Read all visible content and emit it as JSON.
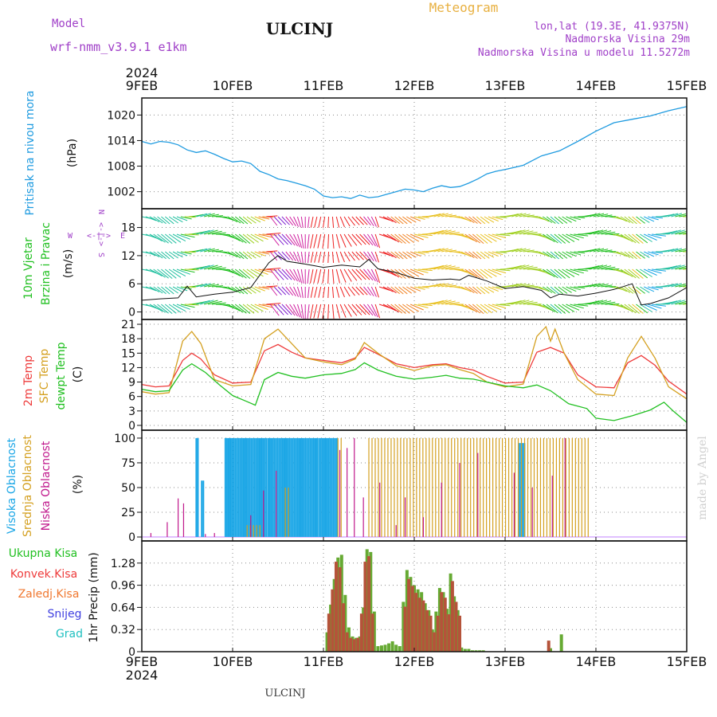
{
  "header": {
    "model_label": "Model",
    "model_name": "wrf-nmm_v3.9.1  e1km",
    "station": "ULCINJ",
    "meteogram": "Meteogram",
    "lonlat": "lon,lat (19.3E, 41.9375N)",
    "elevation": "Nadmorska Visina 29m",
    "model_elevation": "Nadmorska Visina u modelu 11.5272m",
    "footer_station": "ULCINJ",
    "credit": "made by Angel"
  },
  "colors": {
    "pressure": "#1f9be0",
    "temp2m": "#ee3b3b",
    "sfc": "#d4a020",
    "dewpt": "#22c022",
    "high_cloud": "#1aa6e6",
    "mid_cloud": "#d4a020",
    "low_cloud": "#c0188c",
    "total_precip": "#66aa33",
    "conv_precip": "#b5533a",
    "purple_text": "#a040c8",
    "orange_text": "#e8b040"
  },
  "chart_data": {
    "type": "meteogram",
    "time_axis": {
      "start": "2024-02-09",
      "end": "2024-02-15",
      "year": "2024",
      "tick_labels": [
        "9FEB",
        "10FEB",
        "11FEB",
        "12FEB",
        "13FEB",
        "14FEB",
        "15FEB"
      ]
    },
    "panels": [
      {
        "id": "pressure",
        "labels": [
          "Pritisak na nivou mora",
          "(hPa)"
        ],
        "yticks": [
          1002,
          1008,
          1014,
          1020
        ],
        "ylim": [
          998,
          1024
        ],
        "series": [
          {
            "name": "Pritisak na nivou mora",
            "x": [
              0,
              0.1,
              0.2,
              0.3,
              0.4,
              0.5,
              0.6,
              0.7,
              0.8,
              0.9,
              1.0,
              1.1,
              1.2,
              1.3,
              1.4,
              1.5,
              1.6,
              1.7,
              1.8,
              1.9,
              2.0,
              2.1,
              2.2,
              2.3,
              2.4,
              2.5,
              2.6,
              2.7,
              2.8,
              2.9,
              3.0,
              3.1,
              3.2,
              3.3,
              3.4,
              3.5,
              3.6,
              3.7,
              3.8,
              3.9,
              4.0,
              4.2,
              4.4,
              4.6,
              4.8,
              5.0,
              5.2,
              5.4,
              5.6,
              5.8,
              6.0
            ],
            "values": [
              1013.8,
              1013.2,
              1013.8,
              1013.6,
              1013.0,
              1011.8,
              1011.2,
              1011.6,
              1010.8,
              1009.8,
              1009.0,
              1009.2,
              1008.6,
              1006.8,
              1006.0,
              1005.0,
              1004.6,
              1004.0,
              1003.4,
              1002.6,
              1001.0,
              1000.6,
              1000.8,
              1000.4,
              1001.2,
              1000.6,
              1000.8,
              1001.4,
              1002.0,
              1002.6,
              1002.4,
              1002.0,
              1002.8,
              1003.4,
              1003.0,
              1003.2,
              1004.0,
              1005.0,
              1006.2,
              1006.8,
              1007.2,
              1008.2,
              1010.4,
              1011.6,
              1013.8,
              1016.2,
              1018.2,
              1019.0,
              1019.8,
              1021.0,
              1022.0
            ]
          }
        ]
      },
      {
        "id": "wind",
        "labels": [
          "10m Vjetar",
          "Brzina i Pravac",
          "(m/s)"
        ],
        "direction_legend": {
          "n": "N",
          "s": "S",
          "w": "W",
          "e": "E",
          "arrows": "<-|->"
        },
        "yticks": [
          0,
          6,
          12,
          18
        ],
        "ylim": [
          -1.6,
          22
        ],
        "series": [
          {
            "name": "Brzina",
            "x": [
              0,
              0.2,
              0.4,
              0.5,
              0.6,
              0.8,
              1.0,
              1.2,
              1.4,
              1.5,
              1.6,
              1.8,
              2.0,
              2.2,
              2.4,
              2.5,
              2.6,
              2.8,
              3.0,
              3.2,
              3.4,
              3.5,
              3.6,
              3.8,
              4.0,
              4.2,
              4.4,
              4.5,
              4.6,
              4.8,
              5.0,
              5.2,
              5.4,
              5.5,
              5.6,
              5.8,
              6.0
            ],
            "values": [
              2.5,
              2.8,
              3.0,
              5.5,
              3.2,
              3.8,
              4.2,
              5.2,
              10.5,
              12.0,
              10.8,
              10.2,
              9.5,
              10.0,
              9.6,
              11.2,
              9.2,
              8.4,
              7.2,
              6.8,
              7.0,
              6.8,
              7.8,
              6.6,
              5.0,
              5.4,
              4.6,
              3.0,
              3.8,
              3.4,
              4.0,
              4.8,
              6.0,
              1.5,
              1.8,
              3.0,
              5.2
            ]
          }
        ]
      },
      {
        "id": "temperature",
        "labels": [
          "2m Temp",
          "SFC Temp",
          "dewpt Temp",
          "(C)"
        ],
        "yticks": [
          0,
          3,
          6,
          9,
          12,
          15,
          18,
          21
        ],
        "ylim": [
          -1,
          22
        ],
        "series": [
          {
            "name": "2m Temp",
            "x": [
              0,
              0.15,
              0.3,
              0.45,
              0.55,
              0.65,
              0.8,
              1.0,
              1.2,
              1.35,
              1.5,
              1.65,
              1.8,
              2.0,
              2.2,
              2.35,
              2.45,
              2.6,
              2.8,
              3.0,
              3.2,
              3.35,
              3.5,
              3.65,
              3.8,
              4.0,
              4.2,
              4.35,
              4.5,
              4.65,
              4.8,
              5.0,
              5.2,
              5.35,
              5.5,
              5.65,
              5.8,
              6.0
            ],
            "values": [
              8.5,
              8.0,
              8.2,
              13.5,
              15.0,
              13.8,
              10.5,
              8.8,
              9.0,
              15.5,
              16.8,
              15.2,
              14.0,
              13.5,
              13.0,
              14.0,
              16.2,
              14.8,
              12.8,
              12.0,
              12.6,
              12.8,
              12.0,
              11.5,
              10.2,
              8.8,
              9.0,
              15.2,
              16.2,
              15.0,
              10.5,
              8.0,
              7.8,
              13.0,
              14.5,
              12.5,
              9.2,
              6.5
            ]
          },
          {
            "name": "SFC Temp",
            "x": [
              0,
              0.15,
              0.3,
              0.45,
              0.55,
              0.65,
              0.8,
              1.0,
              1.2,
              1.35,
              1.5,
              1.65,
              1.8,
              2.0,
              2.2,
              2.35,
              2.45,
              2.6,
              2.8,
              3.0,
              3.2,
              3.35,
              3.5,
              3.65,
              3.8,
              4.0,
              4.2,
              4.35,
              4.45,
              4.5,
              4.55,
              4.65,
              4.8,
              5.0,
              5.2,
              5.35,
              5.5,
              5.65,
              5.8,
              6.0
            ],
            "values": [
              7.0,
              6.5,
              6.8,
              17.5,
              19.5,
              17.0,
              9.5,
              8.2,
              8.5,
              18.0,
              20.0,
              17.0,
              14.0,
              13.2,
              12.6,
              13.8,
              17.2,
              15.0,
              12.4,
              11.4,
              12.4,
              12.6,
              11.6,
              10.8,
              9.0,
              8.0,
              8.6,
              18.5,
              20.5,
              17.5,
              20.0,
              15.0,
              9.5,
              6.5,
              6.2,
              14.0,
              18.5,
              14.0,
              8.0,
              5.5
            ]
          },
          {
            "name": "dewpt Temp",
            "x": [
              0,
              0.15,
              0.3,
              0.45,
              0.55,
              0.7,
              0.85,
              1.0,
              1.15,
              1.25,
              1.35,
              1.5,
              1.65,
              1.8,
              2.0,
              2.2,
              2.35,
              2.45,
              2.6,
              2.8,
              3.0,
              3.2,
              3.35,
              3.5,
              3.65,
              3.8,
              4.0,
              4.2,
              4.35,
              4.5,
              4.7,
              4.9,
              5.0,
              5.2,
              5.4,
              5.6,
              5.75,
              5.85,
              6.0
            ],
            "values": [
              7.5,
              7.0,
              7.2,
              11.5,
              12.8,
              11.0,
              8.5,
              6.2,
              5.0,
              4.2,
              9.5,
              11.0,
              10.2,
              9.8,
              10.5,
              10.8,
              11.6,
              13.0,
              11.5,
              10.2,
              9.6,
              10.0,
              10.4,
              9.8,
              9.6,
              9.0,
              8.2,
              7.8,
              8.4,
              7.2,
              4.5,
              3.5,
              1.5,
              1.0,
              2.0,
              3.2,
              4.8,
              3.0,
              0.6
            ]
          }
        ]
      },
      {
        "id": "clouds",
        "labels": [
          "Visoka Oblacnost",
          "Srednja Oblacnost",
          "Niska Oblacnost",
          "(%)"
        ],
        "yticks": [
          0,
          25,
          50,
          75,
          100
        ],
        "ylim": [
          -4,
          108
        ],
        "series": [
          {
            "name": "Visoka Oblacnost",
            "bands": [
              [
                0.6,
                0.62,
                100
              ],
              [
                0.66,
                0.68,
                57
              ],
              [
                0.92,
                1.38,
                100
              ],
              [
                1.39,
                1.94,
                100
              ],
              [
                1.95,
                2.15,
                100
              ],
              [
                4.16,
                4.22,
                95
              ]
            ]
          },
          {
            "name": "Srednja Oblacnost",
            "bands": [
              [
                1.16,
                1.3,
                12
              ],
              [
                1.58,
                1.64,
                50
              ],
              [
                2.16,
                2.2,
                100
              ],
              [
                2.5,
                4.94,
                100
              ]
            ]
          },
          {
            "name": "Niska Oblacnost",
            "bars": [
              [
                0.1,
                4
              ],
              [
                0.28,
                15
              ],
              [
                0.4,
                39
              ],
              [
                0.46,
                34
              ],
              [
                0.7,
                3
              ],
              [
                0.8,
                4
              ],
              [
                1.2,
                22
              ],
              [
                1.34,
                47
              ],
              [
                1.48,
                67
              ],
              [
                2.18,
                88
              ],
              [
                2.26,
                90
              ],
              [
                2.34,
                100
              ],
              [
                2.44,
                40
              ],
              [
                2.62,
                55
              ],
              [
                2.8,
                12
              ],
              [
                2.9,
                40
              ],
              [
                3.1,
                20
              ],
              [
                3.3,
                55
              ],
              [
                3.5,
                75
              ],
              [
                3.7,
                85
              ],
              [
                4.1,
                65
              ],
              [
                4.3,
                50
              ],
              [
                4.52,
                62
              ],
              [
                4.66,
                100
              ]
            ]
          }
        ]
      },
      {
        "id": "precip",
        "labels": [
          "Ukupna Kisa",
          "Konvek.Kisa",
          "Zaledj.Kisa",
          "Snijeg",
          "Grad",
          "1hr Precip (mm)"
        ],
        "yticks": [
          0,
          0.32,
          0.64,
          0.96,
          1.28
        ],
        "ytick_labels": [
          "0",
          "0.32",
          "0.64",
          "0.96",
          "1.28"
        ],
        "ylim": [
          0,
          1.6
        ],
        "series": [
          {
            "name": "Ukupna Kisa",
            "x": [
              2.04,
              2.08,
              2.12,
              2.16,
              2.2,
              2.24,
              2.28,
              2.32,
              2.36,
              2.4,
              2.44,
              2.48,
              2.52,
              2.56,
              2.6,
              2.64,
              2.68,
              2.72,
              2.76,
              2.8,
              2.84,
              2.88,
              2.92,
              2.96,
              3.0,
              3.04,
              3.08,
              3.12,
              3.16,
              3.2,
              3.24,
              3.28,
              3.32,
              3.36,
              3.4,
              3.44,
              3.48,
              3.52,
              3.56,
              3.6,
              3.64,
              3.68,
              3.72,
              3.76,
              4.5,
              4.62
            ],
            "values": [
              0.28,
              0.68,
              1.05,
              1.36,
              1.4,
              0.82,
              0.35,
              0.22,
              0.2,
              0.22,
              0.64,
              1.48,
              1.44,
              0.58,
              0.08,
              0.09,
              0.1,
              0.12,
              0.15,
              0.1,
              0.08,
              0.72,
              1.18,
              1.08,
              0.96,
              0.9,
              0.86,
              0.7,
              0.6,
              0.32,
              0.58,
              0.92,
              0.86,
              0.62,
              1.13,
              0.8,
              0.6,
              0.06,
              0.04,
              0.04,
              0.02,
              0.02,
              0.02,
              0.02,
              0.05,
              0.25
            ]
          },
          {
            "name": "Konvek.Kisa",
            "x": [
              2.06,
              2.1,
              2.14,
              2.18,
              2.22,
              2.26,
              2.3,
              2.34,
              2.38,
              2.42,
              2.46,
              2.5,
              2.54,
              2.9,
              2.94,
              2.98,
              3.02,
              3.06,
              3.1,
              3.14,
              3.18,
              3.22,
              3.26,
              3.3,
              3.34,
              3.38,
              3.42,
              3.46,
              3.5,
              4.48
            ],
            "values": [
              0.55,
              0.9,
              1.3,
              1.22,
              0.7,
              0.28,
              0.2,
              0.18,
              0.2,
              0.55,
              1.3,
              1.38,
              0.55,
              0.65,
              1.05,
              0.95,
              0.85,
              0.78,
              0.74,
              0.6,
              0.52,
              0.28,
              0.52,
              0.86,
              0.78,
              0.54,
              1.02,
              0.72,
              0.52,
              0.16
            ]
          }
        ]
      }
    ]
  }
}
